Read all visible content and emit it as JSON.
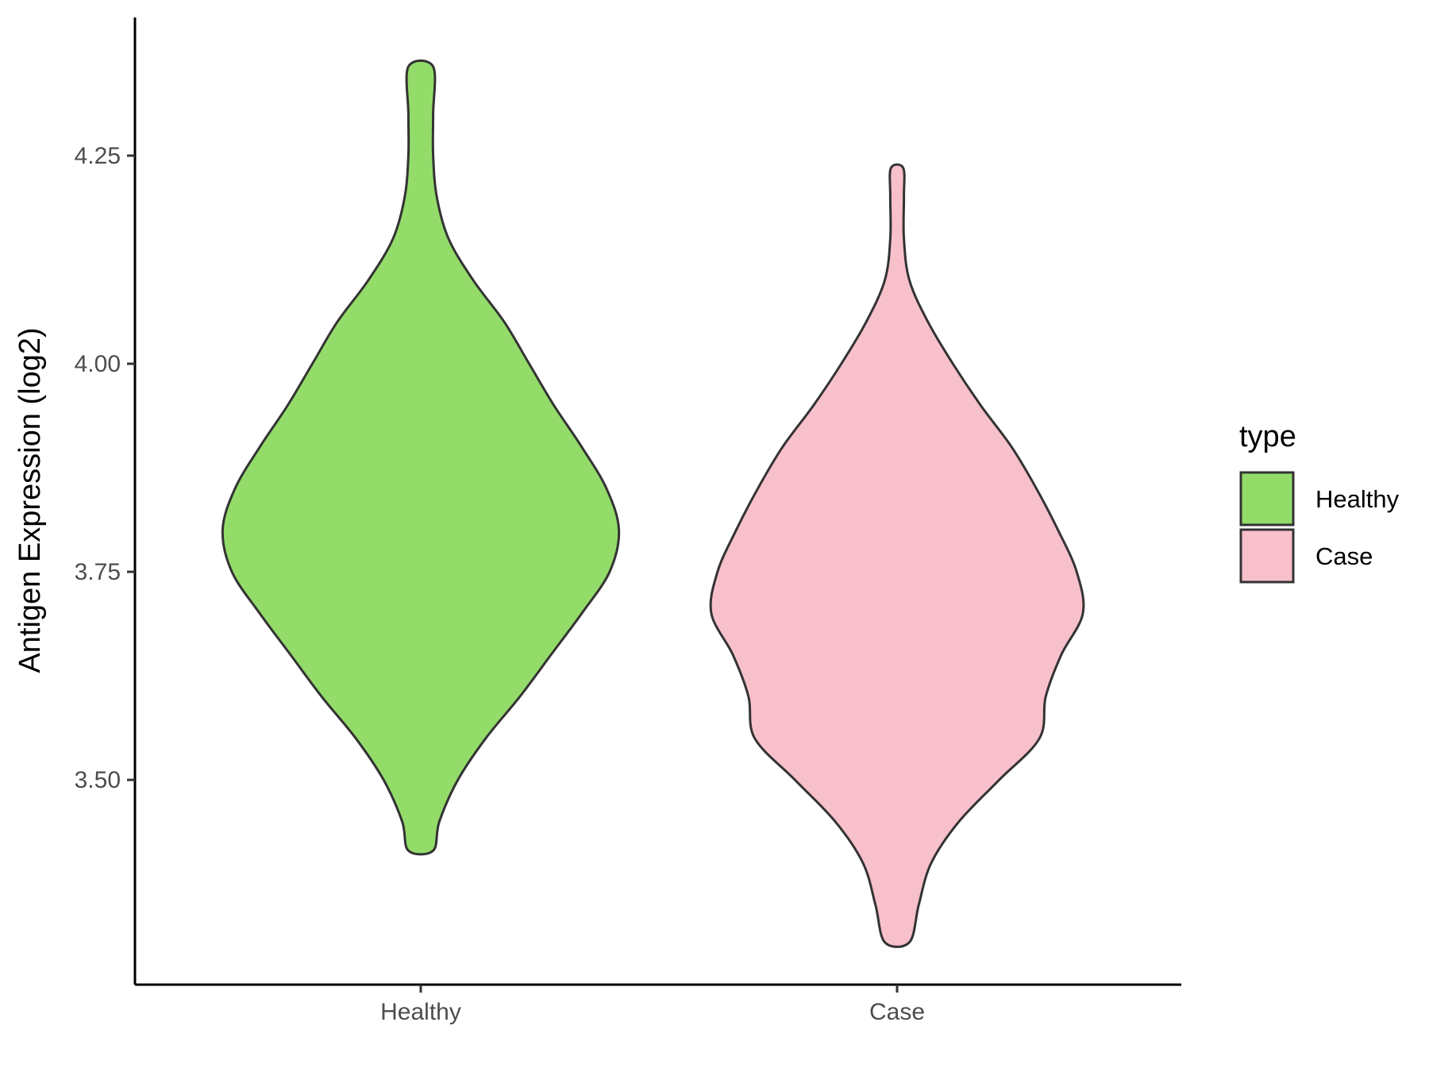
{
  "chart_data": {
    "type": "violin",
    "title": "",
    "xlabel": "",
    "ylabel": "Antigen Expression (log2)",
    "categories": [
      "Healthy",
      "Case"
    ],
    "ylim": [
      3.254,
      4.416
    ],
    "yticks": [
      3.5,
      3.75,
      4.0,
      4.25
    ],
    "ytick_labels": [
      "3.50",
      "3.75",
      "4.00",
      "4.25"
    ],
    "grid": false,
    "legend": {
      "title": "type",
      "placement": "right",
      "entries": [
        "Healthy",
        "Case"
      ]
    },
    "series": [
      {
        "name": "Healthy",
        "color": "#93dc6a",
        "y_min": 3.415,
        "y_max": 4.357,
        "density_profile": [
          [
            4.357,
            0.04
          ],
          [
            4.3,
            0.04
          ],
          [
            4.25,
            0.04
          ],
          [
            4.2,
            0.052
          ],
          [
            4.15,
            0.09
          ],
          [
            4.1,
            0.17
          ],
          [
            4.05,
            0.27
          ],
          [
            4.0,
            0.35
          ],
          [
            3.95,
            0.43
          ],
          [
            3.9,
            0.52
          ],
          [
            3.85,
            0.6
          ],
          [
            3.8,
            0.64
          ],
          [
            3.75,
            0.61
          ],
          [
            3.7,
            0.52
          ],
          [
            3.65,
            0.42
          ],
          [
            3.6,
            0.32
          ],
          [
            3.55,
            0.21
          ],
          [
            3.5,
            0.12
          ],
          [
            3.45,
            0.06
          ],
          [
            3.415,
            0.04
          ]
        ]
      },
      {
        "name": "Case",
        "color": "#f8c0cb",
        "y_min": 3.305,
        "y_max": 4.235,
        "density_profile": [
          [
            4.235,
            0.02
          ],
          [
            4.2,
            0.022
          ],
          [
            4.15,
            0.022
          ],
          [
            4.1,
            0.04
          ],
          [
            4.05,
            0.1
          ],
          [
            4.0,
            0.18
          ],
          [
            3.95,
            0.27
          ],
          [
            3.9,
            0.37
          ],
          [
            3.85,
            0.45
          ],
          [
            3.8,
            0.52
          ],
          [
            3.75,
            0.58
          ],
          [
            3.7,
            0.6
          ],
          [
            3.65,
            0.53
          ],
          [
            3.6,
            0.48
          ],
          [
            3.55,
            0.46
          ],
          [
            3.5,
            0.33
          ],
          [
            3.45,
            0.2
          ],
          [
            3.4,
            0.11
          ],
          [
            3.35,
            0.07
          ],
          [
            3.305,
            0.04
          ]
        ]
      }
    ]
  }
}
